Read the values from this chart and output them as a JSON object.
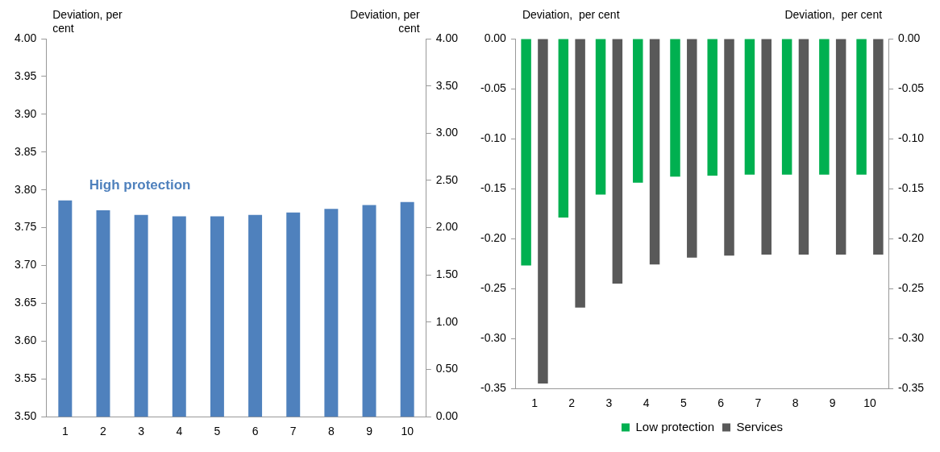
{
  "chart_data": [
    {
      "type": "bar",
      "ylabel": "Deviation, per cent",
      "y2label": "Deviation, per cent",
      "categories": [
        "1",
        "2",
        "3",
        "4",
        "5",
        "6",
        "7",
        "8",
        "9",
        "10"
      ],
      "series": [
        {
          "name": "High protection",
          "color": "#4f81bd",
          "values": [
            3.786,
            3.773,
            3.767,
            3.765,
            3.765,
            3.767,
            3.77,
            3.775,
            3.78,
            3.784
          ]
        }
      ],
      "ylim": [
        3.5,
        4.0
      ],
      "yticks": [
        {
          "value": 3.5,
          "label": "3.50"
        },
        {
          "value": 3.55,
          "label": "3.55"
        },
        {
          "value": 3.6,
          "label": "3.60"
        },
        {
          "value": 3.65,
          "label": "3.65"
        },
        {
          "value": 3.7,
          "label": "3.70"
        },
        {
          "value": 3.75,
          "label": "3.75"
        },
        {
          "value": 3.8,
          "label": "3.80"
        },
        {
          "value": 3.85,
          "label": "3.85"
        },
        {
          "value": 3.9,
          "label": "3.90"
        },
        {
          "value": 3.95,
          "label": "3.95"
        },
        {
          "value": 4.0,
          "label": "4.00"
        }
      ],
      "y2lim": [
        0,
        4
      ],
      "y2ticks": [
        {
          "value": 0,
          "label": "0.00"
        },
        {
          "value": 0.5,
          "label": "0.50"
        },
        {
          "value": 1,
          "label": "1.00"
        },
        {
          "value": 1.5,
          "label": "1.50"
        },
        {
          "value": 2,
          "label": "2.00"
        },
        {
          "value": 2.5,
          "label": "2.50"
        },
        {
          "value": 3,
          "label": "3.00"
        },
        {
          "value": 3.5,
          "label": "3.50"
        },
        {
          "value": 4,
          "label": "4.00"
        }
      ],
      "grid": false,
      "legend": false
    },
    {
      "type": "bar",
      "ylabel": "Deviation,  per cent",
      "y2label": "Deviation,  per cent",
      "categories": [
        "1",
        "2",
        "3",
        "4",
        "5",
        "6",
        "7",
        "8",
        "9",
        "10"
      ],
      "series": [
        {
          "name": "Low protection",
          "color": "#00b050",
          "values": [
            -0.227,
            -0.179,
            -0.156,
            -0.144,
            -0.138,
            -0.137,
            -0.136,
            -0.136,
            -0.136,
            -0.136
          ]
        },
        {
          "name": "Services",
          "color": "#595959",
          "values": [
            -0.345,
            -0.269,
            -0.245,
            -0.226,
            -0.219,
            -0.217,
            -0.216,
            -0.216,
            -0.216,
            -0.216
          ]
        }
      ],
      "ylim": [
        -0.35,
        0
      ],
      "yticks": [
        {
          "value": -0.35,
          "label": "-0.35"
        },
        {
          "value": -0.3,
          "label": "-0.30"
        },
        {
          "value": -0.25,
          "label": "-0.25"
        },
        {
          "value": -0.2,
          "label": "-0.20"
        },
        {
          "value": -0.15,
          "label": "-0.15"
        },
        {
          "value": -0.1,
          "label": "-0.10"
        },
        {
          "value": -0.05,
          "label": "-0.05"
        },
        {
          "value": 0,
          "label": "0.00"
        }
      ],
      "y2lim": [
        -0.35,
        0
      ],
      "y2ticks": [
        {
          "value": -0.35,
          "label": "-0.35"
        },
        {
          "value": -0.3,
          "label": "-0.30"
        },
        {
          "value": -0.25,
          "label": "-0.25"
        },
        {
          "value": -0.2,
          "label": "-0.20"
        },
        {
          "value": -0.15,
          "label": "-0.15"
        },
        {
          "value": -0.1,
          "label": "-0.10"
        },
        {
          "value": -0.05,
          "label": "-0.05"
        },
        {
          "value": 0,
          "label": "0.00"
        }
      ],
      "grid": false,
      "legend": "bottom"
    }
  ]
}
